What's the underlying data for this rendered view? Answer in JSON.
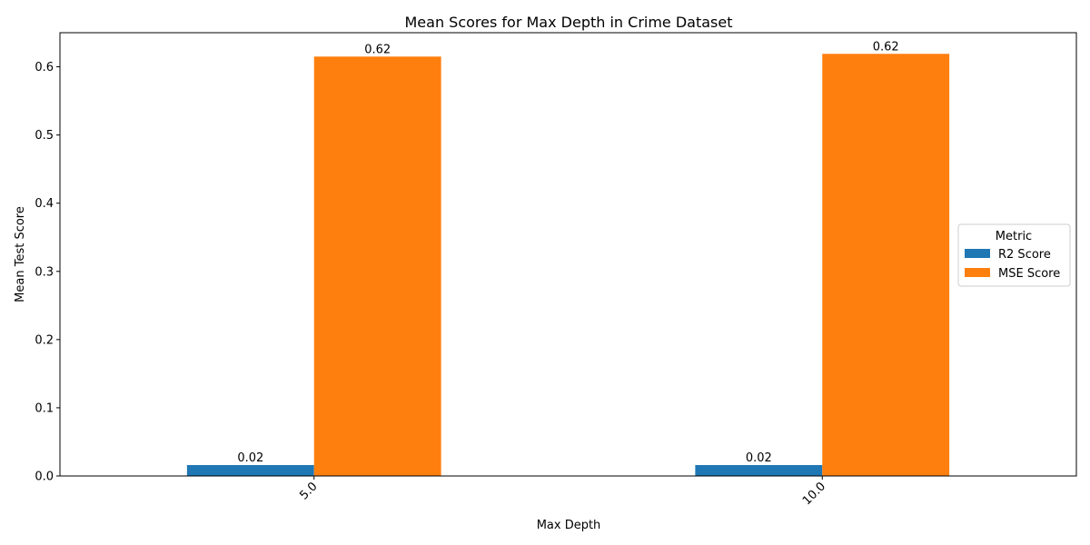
{
  "chart_data": {
    "type": "bar",
    "title": "Mean Scores for Max Depth in Crime Dataset",
    "xlabel": "Max Depth",
    "ylabel": "Mean Test Score",
    "categories": [
      "5.0",
      "10.0"
    ],
    "series": [
      {
        "name": "R2 Score",
        "values": [
          0.016,
          0.016
        ],
        "labels": [
          "0.02",
          "0.02"
        ],
        "color": "#1f77b4"
      },
      {
        "name": "MSE Score",
        "values": [
          0.615,
          0.619
        ],
        "labels": [
          "0.62",
          "0.62"
        ],
        "color": "#ff7f0e"
      }
    ],
    "ylim": [
      0,
      0.65
    ],
    "yticks": [
      "0.0",
      "0.1",
      "0.2",
      "0.3",
      "0.4",
      "0.5",
      "0.6"
    ],
    "grid": false,
    "legend": {
      "title": "Metric",
      "placement": "center-right"
    }
  }
}
